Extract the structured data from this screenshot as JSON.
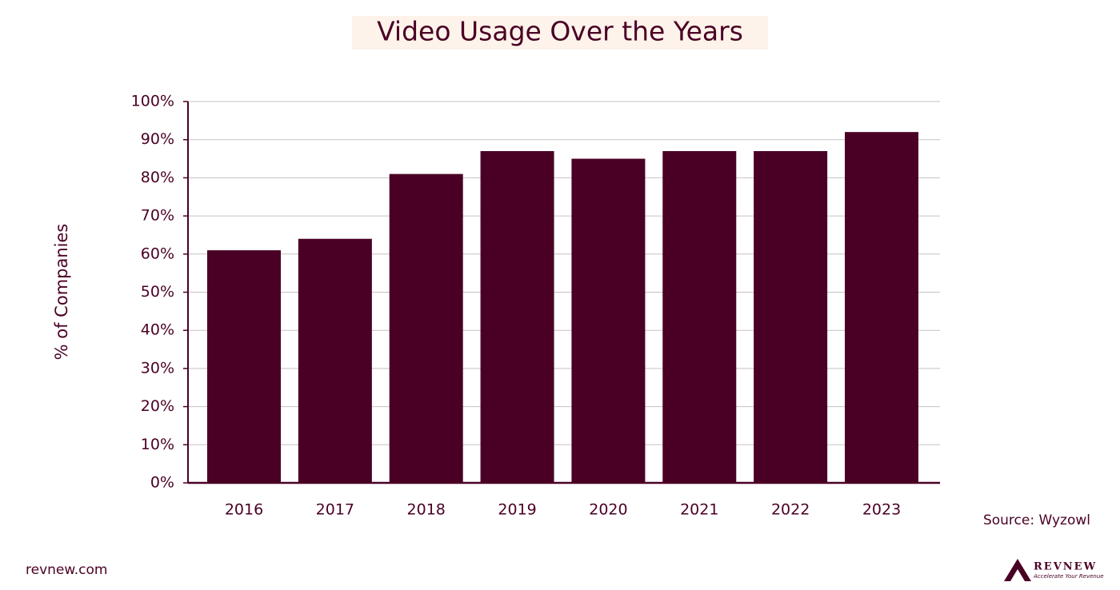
{
  "chart_data": {
    "type": "bar",
    "title": "Video Usage Over the Years",
    "y_label": "% of Companies",
    "categories": [
      "2016",
      "2017",
      "2018",
      "2019",
      "2020",
      "2021",
      "2022",
      "2023"
    ],
    "values": [
      61,
      64,
      81,
      87,
      85,
      87,
      87,
      92
    ],
    "color": "#4a0025",
    "ylim": [
      0,
      100
    ],
    "yticks": [
      {
        "value": 0,
        "label": "0%"
      },
      {
        "value": 10,
        "label": "10%"
      },
      {
        "value": 20,
        "label": "20%"
      },
      {
        "value": 30,
        "label": "30%"
      },
      {
        "value": 40,
        "label": "40%"
      },
      {
        "value": 50,
        "label": "50%"
      },
      {
        "value": 60,
        "label": "60%"
      },
      {
        "value": 70,
        "label": "70%"
      },
      {
        "value": 80,
        "label": "80%"
      },
      {
        "value": 90,
        "label": "90%"
      },
      {
        "value": 100,
        "label": "100%"
      }
    ],
    "grid": true,
    "source": "Source: Wyzowl"
  },
  "footer": {
    "site": "revnew.com",
    "logo": "REVNEW",
    "tagline": "Accelerate Your Revenue"
  }
}
